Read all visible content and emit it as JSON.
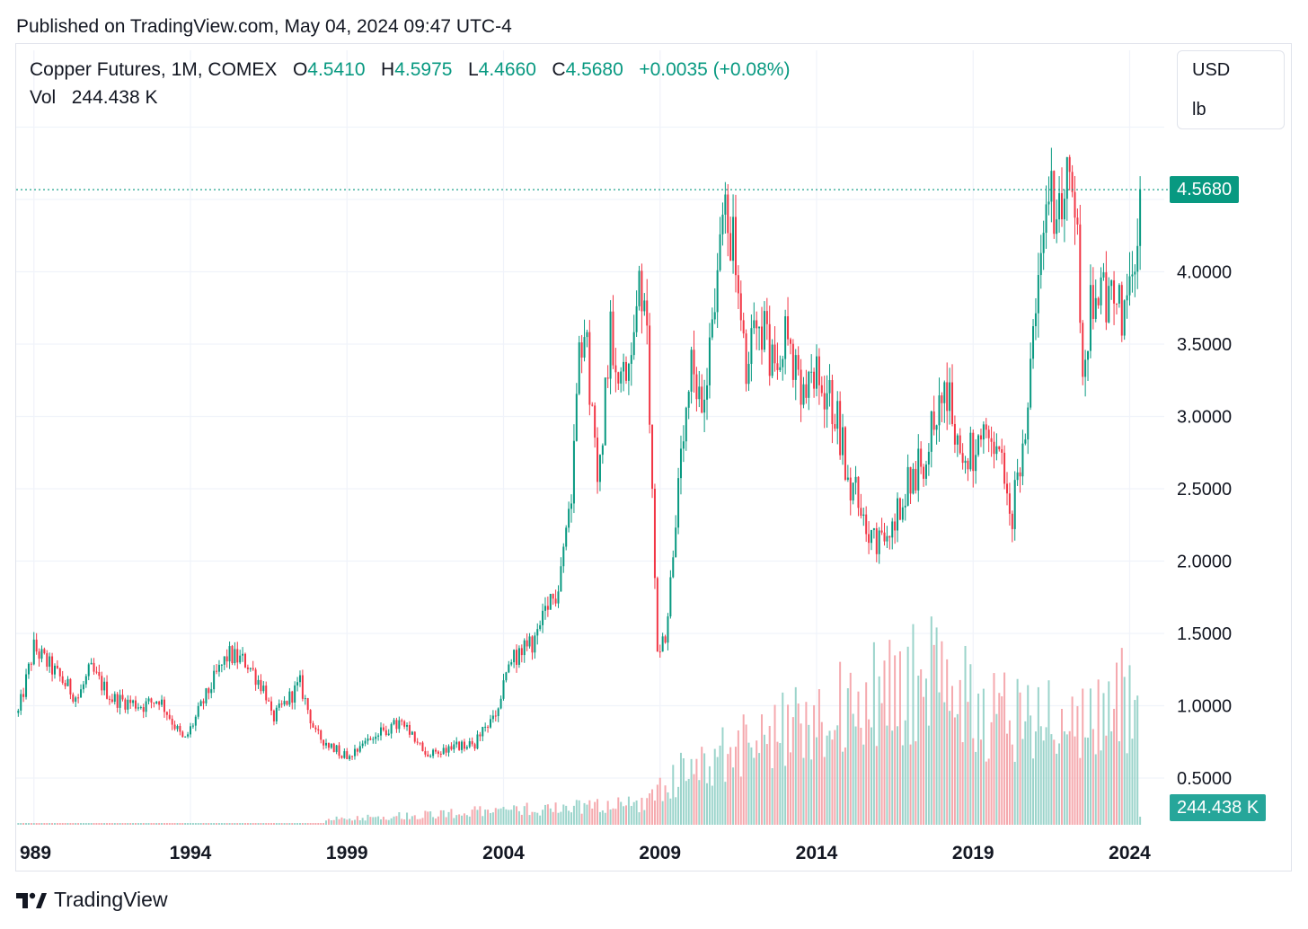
{
  "header": {
    "published": "Published on TradingView.com, May 04, 2024 09:47 UTC-4"
  },
  "legend": {
    "symbol": "Copper Futures, 1M, COMEX",
    "o_label": "O",
    "open": "4.5410",
    "h_label": "H",
    "high": "4.5975",
    "l_label": "L",
    "low": "4.4660",
    "c_label": "C",
    "close": "4.5680",
    "change": "+0.0035 (+0.08%)",
    "vol_label": "Vol",
    "vol_value": "244.438 K"
  },
  "units": {
    "currency": "USD",
    "unit": "lb"
  },
  "price_tag": "4.5680",
  "volume_tag": "244.438 K",
  "brand": {
    "name": "TradingView"
  },
  "colors": {
    "up": "#089981",
    "down": "#f23645",
    "up_volume": "#9bd4cb",
    "down_volume": "#f5a9ae",
    "grid": "#f0f3fa"
  },
  "chart_data": {
    "type": "candlestick",
    "title": "Copper Futures, 1M, COMEX",
    "x_ticks": [
      "989",
      "1994",
      "1999",
      "2004",
      "2009",
      "2014",
      "2019",
      "2024"
    ],
    "y_ticks": [
      "0.5000",
      "1.0000",
      "1.5000",
      "2.0000",
      "2.5000",
      "3.0000",
      "3.5000",
      "4.0000"
    ],
    "ylim": [
      0.3,
      5.0
    ],
    "last_close": 4.568,
    "price_anchors": [
      {
        "year": 1988.5,
        "price": 0.95
      },
      {
        "year": 1989.0,
        "price": 1.4
      },
      {
        "year": 1989.4,
        "price": 1.3
      },
      {
        "year": 1990.4,
        "price": 1.05
      },
      {
        "year": 1990.8,
        "price": 1.25
      },
      {
        "year": 1991.5,
        "price": 1.05
      },
      {
        "year": 1992.5,
        "price": 1.0
      },
      {
        "year": 1993.0,
        "price": 1.05
      },
      {
        "year": 1993.8,
        "price": 0.75
      },
      {
        "year": 1994.8,
        "price": 1.2
      },
      {
        "year": 1995.2,
        "price": 1.35
      },
      {
        "year": 1995.8,
        "price": 1.3
      },
      {
        "year": 1996.4,
        "price": 1.1
      },
      {
        "year": 1996.6,
        "price": 0.9
      },
      {
        "year": 1997.5,
        "price": 1.15
      },
      {
        "year": 1998.0,
        "price": 0.8
      },
      {
        "year": 1999.0,
        "price": 0.65
      },
      {
        "year": 1999.5,
        "price": 0.75
      },
      {
        "year": 2000.7,
        "price": 0.88
      },
      {
        "year": 2001.6,
        "price": 0.65
      },
      {
        "year": 2002.3,
        "price": 0.72
      },
      {
        "year": 2003.0,
        "price": 0.72
      },
      {
        "year": 2003.8,
        "price": 0.95
      },
      {
        "year": 2004.2,
        "price": 1.3
      },
      {
        "year": 2005.0,
        "price": 1.45
      },
      {
        "year": 2005.7,
        "price": 1.8
      },
      {
        "year": 2006.2,
        "price": 2.5
      },
      {
        "year": 2006.4,
        "price": 3.7
      },
      {
        "year": 2006.7,
        "price": 3.4
      },
      {
        "year": 2007.0,
        "price": 2.5
      },
      {
        "year": 2007.4,
        "price": 3.6
      },
      {
        "year": 2007.9,
        "price": 3.2
      },
      {
        "year": 2008.3,
        "price": 3.9
      },
      {
        "year": 2008.6,
        "price": 3.5
      },
      {
        "year": 2008.9,
        "price": 1.4
      },
      {
        "year": 2009.2,
        "price": 1.5
      },
      {
        "year": 2009.5,
        "price": 2.3
      },
      {
        "year": 2010.0,
        "price": 3.3
      },
      {
        "year": 2010.3,
        "price": 3.0
      },
      {
        "year": 2011.1,
        "price": 4.5
      },
      {
        "year": 2011.4,
        "price": 4.1
      },
      {
        "year": 2011.75,
        "price": 3.2
      },
      {
        "year": 2012.1,
        "price": 3.8
      },
      {
        "year": 2012.5,
        "price": 3.4
      },
      {
        "year": 2013.0,
        "price": 3.6
      },
      {
        "year": 2013.5,
        "price": 3.1
      },
      {
        "year": 2014.0,
        "price": 3.25
      },
      {
        "year": 2014.6,
        "price": 3.05
      },
      {
        "year": 2015.0,
        "price": 2.6
      },
      {
        "year": 2015.9,
        "price": 2.1
      },
      {
        "year": 2016.3,
        "price": 2.15
      },
      {
        "year": 2016.8,
        "price": 2.5
      },
      {
        "year": 2017.4,
        "price": 2.7
      },
      {
        "year": 2018.0,
        "price": 3.2
      },
      {
        "year": 2018.3,
        "price": 3.05
      },
      {
        "year": 2018.6,
        "price": 2.7
      },
      {
        "year": 2019.4,
        "price": 2.8
      },
      {
        "year": 2019.9,
        "price": 2.7
      },
      {
        "year": 2020.2,
        "price": 2.2
      },
      {
        "year": 2020.9,
        "price": 3.4
      },
      {
        "year": 2021.4,
        "price": 4.6
      },
      {
        "year": 2021.8,
        "price": 4.4
      },
      {
        "year": 2022.2,
        "price": 4.7
      },
      {
        "year": 2022.5,
        "price": 3.4
      },
      {
        "year": 2022.9,
        "price": 3.9
      },
      {
        "year": 2023.3,
        "price": 3.8
      },
      {
        "year": 2023.8,
        "price": 3.7
      },
      {
        "year": 2024.1,
        "price": 3.9
      },
      {
        "year": 2024.33,
        "price": 4.57
      }
    ],
    "volume_anchors": [
      {
        "year": 1998.3,
        "vol": 0.02
      },
      {
        "year": 2003.5,
        "vol": 0.05
      },
      {
        "year": 2008.5,
        "vol": 0.08
      },
      {
        "year": 2010.0,
        "vol": 0.22
      },
      {
        "year": 2013.0,
        "vol": 0.35
      },
      {
        "year": 2017.5,
        "vol": 0.55
      },
      {
        "year": 2019.5,
        "vol": 0.42
      },
      {
        "year": 2022.5,
        "vol": 0.38
      },
      {
        "year": 2024.33,
        "vol": 0.5
      }
    ]
  }
}
